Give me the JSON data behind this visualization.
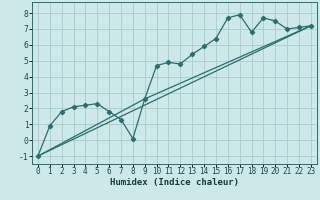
{
  "xlabel": "Humidex (Indice chaleur)",
  "ylabel": "",
  "bg_color": "#cce8e8",
  "grid_color": "#aacccc",
  "line_color": "#2a6e6e",
  "xlim": [
    -0.5,
    23.5
  ],
  "ylim": [
    -1.5,
    8.7
  ],
  "xticks": [
    0,
    1,
    2,
    3,
    4,
    5,
    6,
    7,
    8,
    9,
    10,
    11,
    12,
    13,
    14,
    15,
    16,
    17,
    18,
    19,
    20,
    21,
    22,
    23
  ],
  "yticks": [
    -1,
    0,
    1,
    2,
    3,
    4,
    5,
    6,
    7,
    8
  ],
  "series1_x": [
    0,
    1,
    2,
    3,
    4,
    5,
    6,
    7,
    8,
    9,
    10,
    11,
    12,
    13,
    14,
    15,
    16,
    17,
    18,
    19,
    20,
    21,
    22,
    23
  ],
  "series1_y": [
    -1.0,
    0.9,
    1.8,
    2.1,
    2.2,
    2.3,
    1.8,
    1.3,
    0.1,
    2.6,
    4.7,
    4.9,
    4.8,
    5.4,
    5.9,
    6.4,
    7.7,
    7.9,
    6.8,
    7.7,
    7.5,
    7.0,
    7.1,
    7.2
  ],
  "series2_x": [
    0,
    23
  ],
  "series2_y": [
    -1.0,
    7.2
  ],
  "series3_x": [
    0,
    9,
    23
  ],
  "series3_y": [
    -1.0,
    2.6,
    7.2
  ],
  "xlabel_fontsize": 6.5,
  "tick_fontsize": 5.5
}
